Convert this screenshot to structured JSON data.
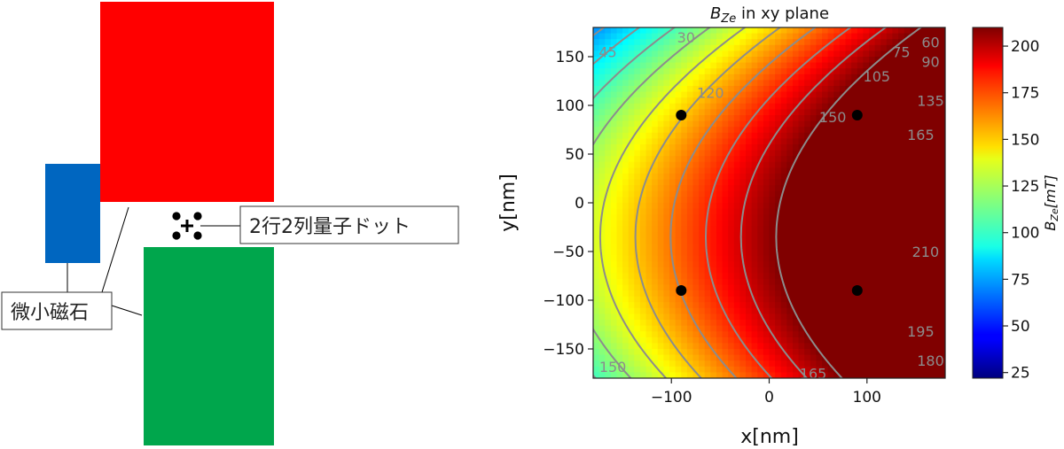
{
  "diagram": {
    "magnet_label": "微小磁石",
    "qd_label": "2行2列量子ドット",
    "colors": {
      "red_magnet": "#ff0000",
      "blue_magnet": "#0066c0",
      "green_magnet": "#00a64c"
    }
  },
  "chart_data": {
    "type": "heatmap",
    "title": "B_Ze in xy plane",
    "title_math": "B",
    "title_sub": "Ze",
    "title_rest": " in xy plane",
    "xlabel": "x[nm]",
    "ylabel": "y[nm]",
    "xlim": [
      -180,
      180
    ],
    "ylim": [
      -180,
      180
    ],
    "xticks": [
      -100,
      0,
      100
    ],
    "xtick_labels": [
      "−100",
      "0",
      "100"
    ],
    "yticks": [
      150,
      100,
      50,
      0,
      -50,
      -100,
      -150
    ],
    "ytick_labels": [
      "150",
      "100",
      "50",
      "0",
      "−50",
      "−100",
      "−150"
    ],
    "colorbar": {
      "label": "B_Ze[mT]",
      "label_math": "B",
      "label_sub": "Ze",
      "label_rest": "[mT]",
      "range": [
        22,
        210
      ],
      "ticks": [
        200,
        175,
        150,
        125,
        100,
        75,
        50,
        25
      ],
      "colormap": "jet"
    },
    "contour_levels": [
      30,
      45,
      60,
      75,
      90,
      105,
      120,
      135,
      150,
      165,
      180,
      195,
      210
    ],
    "contour_labels": [
      {
        "text": "30",
        "x": -85,
        "y": 170
      },
      {
        "text": "45",
        "x": -165,
        "y": 155
      },
      {
        "text": "60",
        "x": 165,
        "y": 165
      },
      {
        "text": "75",
        "x": 135,
        "y": 155
      },
      {
        "text": "90",
        "x": 165,
        "y": 145
      },
      {
        "text": "105",
        "x": 110,
        "y": 130
      },
      {
        "text": "120",
        "x": -60,
        "y": 113
      },
      {
        "text": "135",
        "x": 165,
        "y": 105
      },
      {
        "text": "150",
        "x": 65,
        "y": 88
      },
      {
        "text": "165",
        "x": 155,
        "y": 70
      },
      {
        "text": "195",
        "x": 155,
        "y": -132
      },
      {
        "text": "180",
        "x": 165,
        "y": -162
      },
      {
        "text": "165",
        "x": 45,
        "y": -175
      },
      {
        "text": "150",
        "x": -160,
        "y": -168
      },
      {
        "text": "210",
        "x": 160,
        "y": -50
      }
    ],
    "points": [
      {
        "x": -90,
        "y": 90
      },
      {
        "x": 90,
        "y": 90
      },
      {
        "x": -90,
        "y": -90
      },
      {
        "x": 90,
        "y": -90
      }
    ]
  }
}
